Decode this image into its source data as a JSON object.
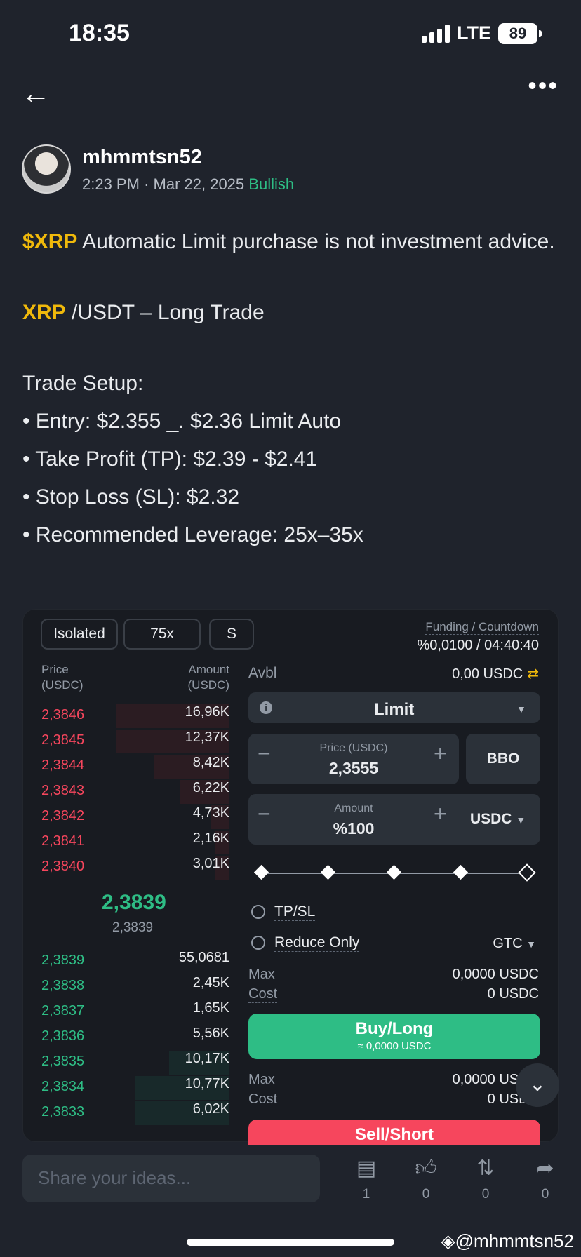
{
  "status": {
    "time": "18:35",
    "network": "LTE",
    "battery": "89"
  },
  "post": {
    "username": "mhmmtsn52",
    "time": "2:23 PM",
    "date": "Mar 22, 2025",
    "sentiment": "Bullish",
    "ticker": "$XRP",
    "line1": " Automatic Limit purchase is not investment advice.",
    "pair_ticker": "XRP",
    "pair_rest": " /USDT – Long Trade",
    "setup_title": "Trade Setup:",
    "setup": [
      "• Entry: $2.355 _. $2.36 Limit Auto",
      "• Take Profit (TP): $2.39 - $2.41",
      "• Stop Loss (SL): $2.32",
      "• Recommended Leverage: 25x–35x"
    ]
  },
  "trade": {
    "chips": [
      "Isolated",
      "75x",
      "S"
    ],
    "funding_label": "Funding / Countdown",
    "funding_value": "%0,0100 / 04:40:40",
    "ob_price_header": "Price",
    "ob_price_unit": "(USDC)",
    "ob_amount_header": "Amount",
    "ob_amount_unit": "(USDC)",
    "asks": [
      {
        "price": "2,3846",
        "amount": "16,96K",
        "depth": 0.6
      },
      {
        "price": "2,3845",
        "amount": "12,37K",
        "depth": 0.6
      },
      {
        "price": "2,3844",
        "amount": "8,42K",
        "depth": 0.4
      },
      {
        "price": "2,3843",
        "amount": "6,22K",
        "depth": 0.26
      },
      {
        "price": "2,3842",
        "amount": "4,73K",
        "depth": 0.1
      },
      {
        "price": "2,3841",
        "amount": "2,16K",
        "depth": 0.08
      },
      {
        "price": "2,3840",
        "amount": "3,01K",
        "depth": 0.08
      }
    ],
    "mid_price": "2,3839",
    "mark_price": "2,3839",
    "bids": [
      {
        "price": "2,3839",
        "amount": "55,0681",
        "depth": 0.0
      },
      {
        "price": "2,3838",
        "amount": "2,45K",
        "depth": 0.0
      },
      {
        "price": "2,3837",
        "amount": "1,65K",
        "depth": 0.0
      },
      {
        "price": "2,3836",
        "amount": "5,56K",
        "depth": 0.0
      },
      {
        "price": "2,3835",
        "amount": "10,17K",
        "depth": 0.32
      },
      {
        "price": "2,3834",
        "amount": "10,77K",
        "depth": 0.5
      },
      {
        "price": "2,3833",
        "amount": "6,02K",
        "depth": 0.5
      }
    ],
    "avbl_label": "Avbl",
    "avbl_value": "0,00 USDC",
    "order_type": "Limit",
    "price_label": "Price (USDC)",
    "price_value": "2,3555",
    "bbo": "BBO",
    "amount_label": "Amount",
    "amount_value": "%100",
    "amount_unit": "USDC",
    "tpsl": "TP/SL",
    "reduce_only": "Reduce Only",
    "tif": "GTC",
    "max_label": "Max",
    "cost_label": "Cost",
    "buy_max": "0,0000 USDC",
    "buy_cost": "0 USDC",
    "buy_label": "Buy/Long",
    "buy_sub": "≈ 0,0000 USDC",
    "sell_max": "0,0000 USDC",
    "sell_cost": "0 USDC",
    "sell_label": "Sell/Short"
  },
  "bottom": {
    "placeholder": "Share your ideas...",
    "comments": "1",
    "likes": "0",
    "reposts": "0",
    "shares": "0",
    "watermark": "@mhmmtsn52"
  },
  "colors": {
    "bg": "#1f232c",
    "green": "#2ebd85",
    "red": "#f6465d",
    "gold": "#f0b90b"
  }
}
